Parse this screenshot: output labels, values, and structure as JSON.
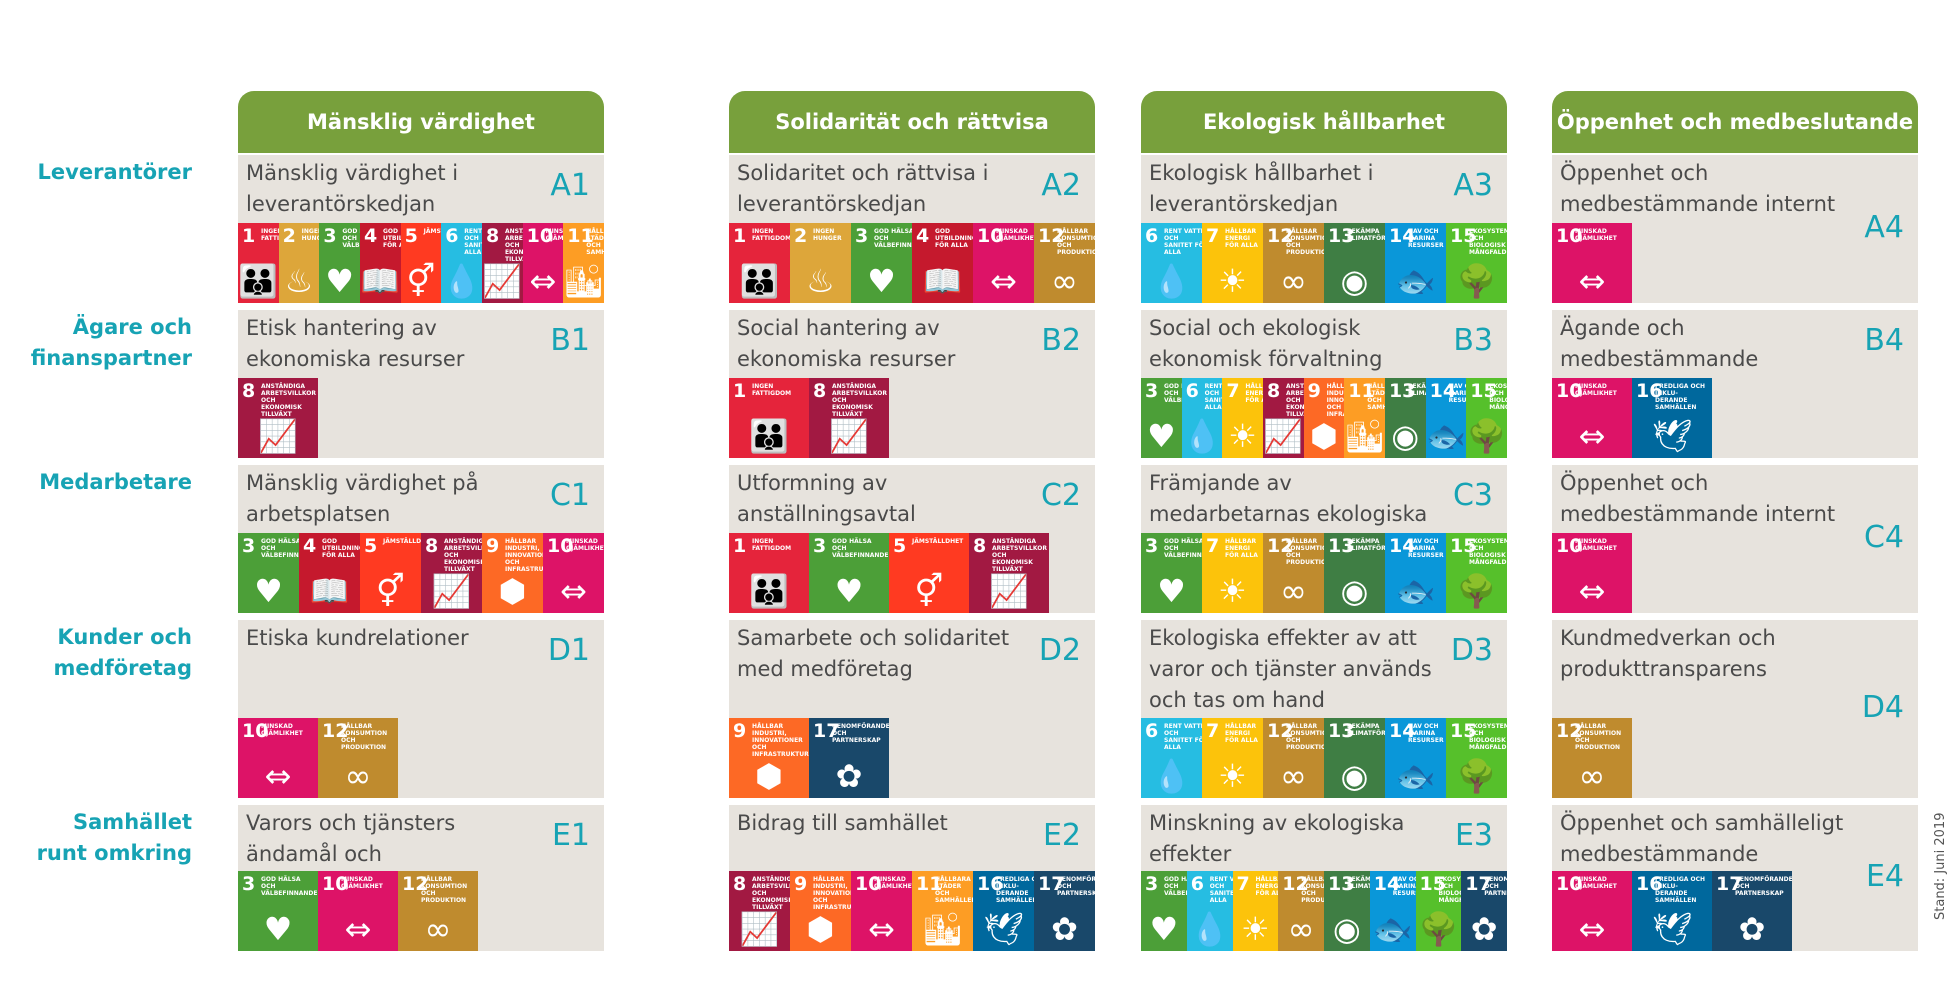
{
  "columns": [
    "Mänsklig värdighet",
    "Solidarität och rättvisa",
    "Ekologisk hållbarhet",
    "Öppenhet och medbeslutande"
  ],
  "rows": [
    {
      "label": "Leverantörer",
      "cells": [
        {
          "title": "Mänsklig värdighet i leverantörskedjan",
          "code": "A1",
          "icons": [
            1,
            2,
            3,
            4,
            5,
            6,
            8,
            10,
            11
          ]
        },
        {
          "title": "Solidaritet och rättvisa i leverantörskedjan",
          "code": "A2",
          "icons": [
            1,
            2,
            3,
            4,
            10,
            12
          ]
        },
        {
          "title": "Ekologisk hållbarhet i leverantörskedjan",
          "code": "A3",
          "icons": [
            6,
            7,
            12,
            13,
            14,
            15
          ]
        },
        {
          "title": "Öppenhet och medbestämmande internt",
          "code": "A4",
          "icons": [
            10
          ]
        }
      ]
    },
    {
      "label": "Ägare och finanspartner",
      "cells": [
        {
          "title": "Etisk hantering av ekonomiska resurser",
          "code": "B1",
          "icons": [
            8
          ]
        },
        {
          "title": "Social hantering av ekonomiska resurser",
          "code": "B2",
          "icons": [
            1,
            8
          ]
        },
        {
          "title": "Social och ekologisk ekonomisk förvaltning",
          "code": "B3",
          "icons": [
            3,
            6,
            7,
            8,
            9,
            11,
            13,
            14,
            15
          ]
        },
        {
          "title": "Ägande och medbestämmande",
          "code": "B4",
          "icons": [
            10,
            16
          ]
        }
      ]
    },
    {
      "label": "Medarbetare",
      "cells": [
        {
          "title": "Mänsklig värdighet på arbetsplatsen",
          "code": "C1",
          "icons": [
            3,
            4,
            5,
            8,
            9,
            10
          ]
        },
        {
          "title": "Utformning av anställningsavtal",
          "code": "C2",
          "icons": [
            1,
            3,
            5,
            8
          ]
        },
        {
          "title": "Främjande av medarbetarnas ekologiska beteende",
          "code": "C3",
          "icons": [
            3,
            7,
            12,
            13,
            14,
            15
          ]
        },
        {
          "title": "Öppenhet och medbestämmande internt",
          "code": "C4",
          "icons": [
            10
          ]
        }
      ]
    },
    {
      "label": "Kunder och medföretag",
      "cells": [
        {
          "title": "Etiska kundrelationer",
          "code": "D1",
          "icons": [
            10,
            12
          ]
        },
        {
          "title": "Samarbete och solidaritet med medföretag",
          "code": "D2",
          "icons": [
            9,
            17
          ]
        },
        {
          "title": "Ekologiska effekter av att varor och tjänster används och tas om hand",
          "code": "D3",
          "icons": [
            6,
            7,
            12,
            13,
            14,
            15
          ]
        },
        {
          "title": "Kundmedverkan och produkttransparens",
          "code": "D4",
          "icons": [
            12
          ]
        }
      ]
    },
    {
      "label": "Samhället runt omkring",
      "cells": [
        {
          "title": "Varors och tjänsters ändamål och samhällseffekter",
          "code": "E1",
          "icons": [
            3,
            10,
            12
          ]
        },
        {
          "title": "Bidrag till samhället",
          "code": "E2",
          "icons": [
            8,
            9,
            10,
            11,
            16,
            17
          ]
        },
        {
          "title": "Minskning av ekologiska effekter",
          "code": "E3",
          "icons": [
            3,
            6,
            7,
            12,
            13,
            14,
            15,
            17
          ]
        },
        {
          "title": "Öppenhet och samhälleligt medbestämmande",
          "code": "E4",
          "icons": [
            10,
            16,
            17
          ]
        }
      ]
    }
  ],
  "sdg": {
    "1": {
      "color": "#e5243b",
      "label": "INGEN\nFATTIGDOM",
      "icon": "people-icon"
    },
    "2": {
      "color": "#dda63a",
      "label": "INGEN\nHUNGER",
      "icon": "bowl-icon"
    },
    "3": {
      "color": "#4c9f38",
      "label": "GOD HÄLSA OCH\nVÄLBEFINNANDE",
      "icon": "heartbeat-icon"
    },
    "4": {
      "color": "#c5192d",
      "label": "GOD UTBILDNING\nFÖR ALLA",
      "icon": "book-icon"
    },
    "5": {
      "color": "#ff3a21",
      "label": "JÄMSTÄLLDHET",
      "icon": "gender-icon"
    },
    "6": {
      "color": "#26bde2",
      "label": "RENT VATTEN OCH\nSANITET FÖR ALLA",
      "icon": "water-icon"
    },
    "7": {
      "color": "#fcc30b",
      "label": "HÅLLBAR ENERGI\nFÖR ALLA",
      "icon": "sun-icon"
    },
    "8": {
      "color": "#a21942",
      "label": "ANSTÄNDIGA\nARBETSVILLKOR\nOCH EKONOMISK\nTILLVÄXT",
      "icon": "growth-chart-icon"
    },
    "9": {
      "color": "#fd6925",
      "label": "HÅLLBAR INDUSTRI,\nINNOVATIONER OCH\nINFRASTRUKTUR",
      "icon": "cubes-icon"
    },
    "10": {
      "color": "#dd1367",
      "label": "MINSKAD\nOJÄMLIKHET",
      "icon": "equality-icon"
    },
    "11": {
      "color": "#fd9d24",
      "label": "HÅLLBARA STÄDER\nOCH SAMHÄLLEN",
      "icon": "city-icon"
    },
    "12": {
      "color": "#bf8b2e",
      "label": "HÅLLBAR\nKONSUMTION OCH\nPRODUKTION",
      "icon": "infinity-icon"
    },
    "13": {
      "color": "#3f7e44",
      "label": "BEKÄMPA\nKLIMATFÖRÄNDRINGARNA",
      "icon": "eye-globe-icon"
    },
    "14": {
      "color": "#0a97d9",
      "label": "HAV OCH MARINA\nRESURSER",
      "icon": "fish-icon"
    },
    "15": {
      "color": "#56c02b",
      "label": "EKOSYSTEM OCH\nBIOLOGISK MÅNGFALD",
      "icon": "tree-icon"
    },
    "16": {
      "color": "#00689d",
      "label": "FREDLIGA OCH INKLU-\nDERANDE SAMHÄLLEN",
      "icon": "dove-icon"
    },
    "17": {
      "color": "#19486a",
      "label": "GENOMFÖRANDE OCH\nPARTNERSKAP",
      "icon": "rings-icon"
    }
  },
  "footer": {
    "stand": "Stand: Juni 2019"
  }
}
